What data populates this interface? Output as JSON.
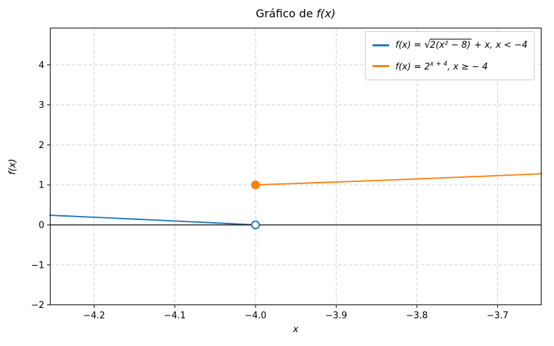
{
  "title": {
    "pre": "Gráfico de ",
    "math": "f(x)"
  },
  "xlabel": "x",
  "ylabel": "f(x)",
  "colors": {
    "blue": "#1f77b4",
    "orange": "#ff7f0e",
    "grid": "#d2d2d2",
    "axis": "#000000",
    "marker_fill_open": "#ffffff"
  },
  "legend": {
    "entries": [
      {
        "color": "#1f77b4",
        "pre": "f(x) = ",
        "radicand": "2(x² − 8)",
        "post": " + x,  x < −4"
      },
      {
        "color": "#ff7f0e",
        "pre": "f(x) = 2",
        "sup": "x + 4",
        "post": ",  x ≥ − 4"
      }
    ]
  },
  "chart_data": {
    "type": "line",
    "title": "Gráfico de f(x)",
    "xlabel": "x",
    "ylabel": "f(x)",
    "xlim": [
      -4.2549,
      -3.6455
    ],
    "ylim": [
      -2.007,
      4.93
    ],
    "grid": true,
    "grid_style": "dashed",
    "legend_position": "upper right",
    "zero_line": 0,
    "xticks": [
      {
        "v": -4.2,
        "label": "−4.2"
      },
      {
        "v": -4.1,
        "label": "−4.1"
      },
      {
        "v": -4.0,
        "label": "−4.0"
      },
      {
        "v": -3.9,
        "label": "−3.9"
      },
      {
        "v": -3.8,
        "label": "−3.8"
      },
      {
        "v": -3.7,
        "label": "−3.7"
      }
    ],
    "yticks": [
      {
        "v": 4,
        "label": "4"
      },
      {
        "v": 3,
        "label": "3"
      },
      {
        "v": 2,
        "label": "2"
      },
      {
        "v": 1,
        "label": "1"
      },
      {
        "v": 0,
        "label": "0"
      },
      {
        "v": -1,
        "label": "−1"
      },
      {
        "v": -2,
        "label": "−2"
      }
    ],
    "series": [
      {
        "name": "f(x) = √(2(x² − 8)) + x, x < −4",
        "color": "#1f77b4",
        "x": [
          -4.2549,
          -4.23,
          -4.21,
          -4.19,
          -4.17,
          -4.15,
          -4.13,
          -4.11,
          -4.09,
          -4.07,
          -4.05,
          -4.03,
          -4.01,
          -4.0
        ],
        "y": [
          0.2405,
          0.2182,
          0.2,
          0.1817,
          0.1633,
          0.1447,
          0.126,
          0.1072,
          0.0881,
          0.0688,
          0.0494,
          0.0298,
          0.01,
          0.0
        ]
      },
      {
        "name": "f(x) = 2^(x + 4), x ≥ −4",
        "color": "#ff7f0e",
        "x": [
          -4.0,
          -3.96,
          -3.92,
          -3.88,
          -3.84,
          -3.8,
          -3.76,
          -3.72,
          -3.68,
          -3.6455
        ],
        "y": [
          1.0,
          1.0281,
          1.057,
          1.0867,
          1.1173,
          1.1487,
          1.181,
          1.2143,
          1.2483,
          1.2786
        ]
      }
    ],
    "markers": [
      {
        "x": -4.0,
        "y": 0,
        "style": "open",
        "color": "#1f77b4",
        "meaning": "excluded endpoint of blue branch"
      },
      {
        "x": -4.0,
        "y": 1,
        "style": "filled",
        "color": "#ff7f0e",
        "meaning": "included endpoint of orange branch"
      }
    ]
  }
}
